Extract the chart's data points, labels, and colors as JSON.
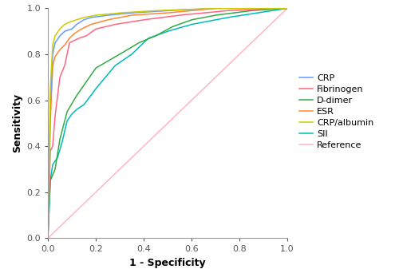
{
  "title": "",
  "xlabel": "1 - Specificity",
  "ylabel": "Sensitivity",
  "xlim": [
    0.0,
    1.0
  ],
  "ylim": [
    0.0,
    1.0
  ],
  "xticks": [
    0.0,
    0.2,
    0.4,
    0.6,
    0.8,
    1.0
  ],
  "yticks": [
    0.0,
    0.2,
    0.4,
    0.6,
    0.8,
    1.0
  ],
  "colors": {
    "CRP": "#6699FF",
    "Fibrinogen": "#FF6680",
    "D-dimer": "#33AA44",
    "ESR": "#FF8833",
    "CRP/albumin": "#CCCC00",
    "SII": "#00BBBB",
    "Reference": "#FFB6C1"
  },
  "legend_labels": [
    "CRP",
    "Fibrinogen",
    "D-dimer",
    "ESR",
    "CRP/albumin",
    "SII",
    "Reference"
  ],
  "figsize": [
    5.0,
    3.47
  ],
  "dpi": 100,
  "background_color": "#ffffff",
  "linewidth": 1.1,
  "font_size": 8,
  "label_font_size": 9
}
